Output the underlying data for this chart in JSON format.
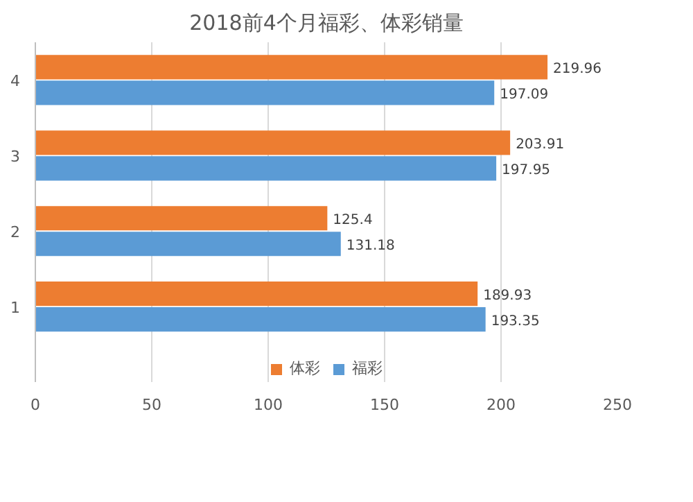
{
  "chart_data": {
    "type": "bar",
    "orientation": "horizontal",
    "title": "2018前4个月福彩、体彩销量",
    "categories": [
      "4",
      "3",
      "2",
      "1"
    ],
    "series": [
      {
        "name": "体彩",
        "color": "#ed7d31",
        "values": [
          219.96,
          203.91,
          125.4,
          189.93
        ]
      },
      {
        "name": "福彩",
        "color": "#5b9bd5",
        "values": [
          197.09,
          197.95,
          131.18,
          193.35
        ]
      }
    ],
    "xlim": [
      0,
      250
    ],
    "xticks": [
      0,
      50,
      100,
      150,
      200,
      250
    ],
    "grid": "x",
    "legend": "bottom",
    "data_labels": true
  }
}
